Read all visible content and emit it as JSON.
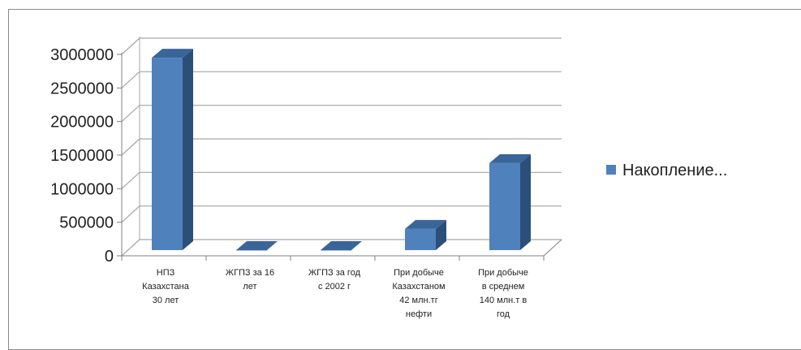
{
  "chart_data": {
    "type": "bar",
    "categories": [
      [
        "НПЗ",
        "Казахстана",
        "30 лет"
      ],
      [
        "ЖГПЗ за 16",
        "лет"
      ],
      [
        "ЖГПЗ за  год",
        "с 2002 г"
      ],
      [
        "При добыче",
        "Казахстаном",
        "42 млн.тг",
        "нефти"
      ],
      [
        "При добыче",
        "в среднем",
        "140 млн.т в",
        "год"
      ]
    ],
    "series": [
      {
        "name": "Накопление...",
        "values": [
          2950000,
          15000,
          8000,
          400000,
          1380000
        ]
      }
    ],
    "ylim": [
      0,
      3000000
    ],
    "yticks": [
      0,
      500000,
      1000000,
      1500000,
      2000000,
      2500000,
      3000000
    ],
    "grid": true,
    "legend": "right",
    "colors": {
      "front": "#4f81bd",
      "side": "#2c4f7a",
      "top": "#3a6598",
      "grid": "#a6a6a6",
      "axis": "#808080"
    }
  }
}
